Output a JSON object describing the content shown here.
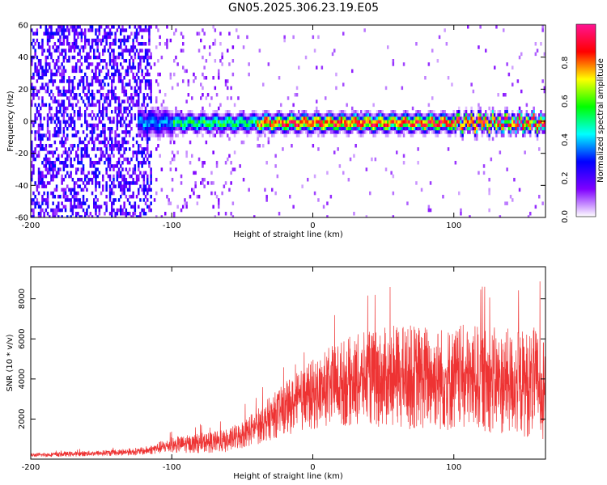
{
  "title": "GN05.2025.306.23.19.E05",
  "chart_data": [
    {
      "type": "heatmap",
      "name": "spectrogram",
      "xlabel": "Height of straight line (km)",
      "ylabel": "Frequency (Hz)",
      "xlim": [
        -200,
        165
      ],
      "ylim": [
        -60,
        60
      ],
      "x_ticks": [
        -200,
        -100,
        0,
        100
      ],
      "y_ticks": [
        -60,
        -40,
        -20,
        0,
        20,
        40,
        60
      ],
      "colorbar": {
        "label": "Normalized spectral amplitude",
        "range": [
          0,
          1
        ],
        "ticks": [
          0.0,
          0.2,
          0.4,
          0.6,
          0.8
        ],
        "tick_labels": [
          "0.0",
          "0.2",
          "0.4",
          "0.6",
          "0.8"
        ],
        "colors": [
          "#ffffff",
          "#7f00ff",
          "#0000ff",
          "#00ffff",
          "#00ff00",
          "#ffff00",
          "#ff0000",
          "#ff1493"
        ]
      },
      "ridge": {
        "frequency": 0,
        "start_height": -125,
        "end_height": 165,
        "peak_amplitude": 0.95
      },
      "noise_region": {
        "start_height": -200,
        "end_height": -115,
        "amplitude": 0.25
      }
    },
    {
      "type": "line",
      "name": "snr",
      "xlabel": "Height of straight line (km)",
      "ylabel": "SNR (10 * v/v)",
      "xlim": [
        -200,
        165
      ],
      "ylim": [
        0,
        9600
      ],
      "x_ticks": [
        -200,
        -100,
        0,
        100
      ],
      "y_ticks": [
        2000,
        4000,
        6000,
        8000
      ],
      "color": "#ee3333",
      "envelope": {
        "x": [
          -200,
          -150,
          -120,
          -100,
          -80,
          -60,
          -40,
          -20,
          0,
          20,
          40,
          60,
          80,
          100,
          120,
          140,
          165
        ],
        "mean": [
          200,
          300,
          400,
          700,
          800,
          900,
          1600,
          2500,
          3200,
          3800,
          4000,
          4100,
          4100,
          4000,
          4000,
          3800,
          3800
        ],
        "amplitude": [
          100,
          150,
          200,
          400,
          500,
          600,
          900,
          1300,
          1800,
          2200,
          2400,
          2600,
          2700,
          2700,
          2700,
          2700,
          2800
        ]
      }
    }
  ]
}
